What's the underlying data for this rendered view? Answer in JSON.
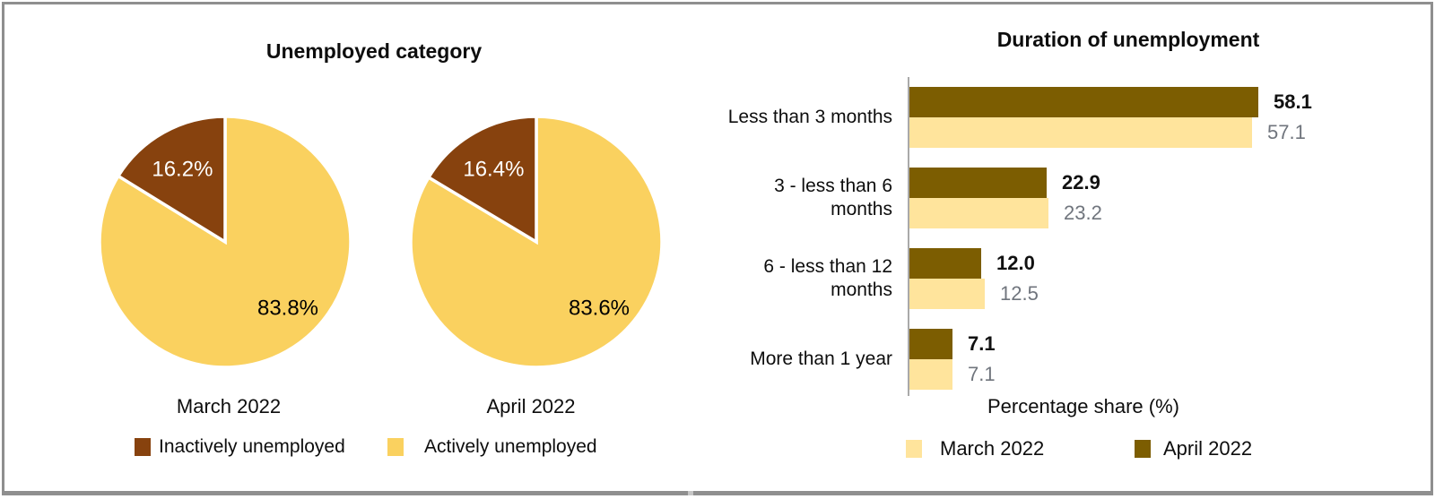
{
  "chart_data": [
    {
      "type": "pie",
      "title": "Unemployed category",
      "pies": [
        {
          "label": "March 2022",
          "slices": [
            {
              "name": "Inactively unemployed",
              "value": 16.2,
              "display": "16.2%"
            },
            {
              "name": "Actively unemployed",
              "value": 83.8,
              "display": "83.8%"
            }
          ]
        },
        {
          "label": "April 2022",
          "slices": [
            {
              "name": "Inactively unemployed",
              "value": 16.4,
              "display": "16.4%"
            },
            {
              "name": "Actively unemployed",
              "value": 83.6,
              "display": "83.6%"
            }
          ]
        }
      ],
      "colors": {
        "Inactively unemployed": "#87420E",
        "Actively unemployed": "#FAD15F"
      },
      "legend": [
        {
          "label": "Inactively unemployed",
          "color": "#87420E"
        },
        {
          "label": "Actively unemployed",
          "color": "#FAD15F"
        }
      ],
      "legend_position": "bottom",
      "grid": false
    },
    {
      "type": "bar",
      "orientation": "horizontal",
      "title": "Duration of unemployment",
      "categories": [
        "Less than 3 months",
        "3 - less than 6\nmonths",
        "6 - less than 12\nmonths",
        "More than 1 year"
      ],
      "series": [
        {
          "name": "April 2022",
          "color": "#7C5D01",
          "values": [
            58.1,
            22.9,
            12.0,
            7.1
          ],
          "labels": [
            "58.1",
            "22.9",
            "12.0",
            "7.1"
          ],
          "value_label_style": "bold"
        },
        {
          "name": "March 2022",
          "color": "#FFE49C",
          "values": [
            57.1,
            23.2,
            12.5,
            7.1
          ],
          "labels": [
            "57.1",
            "23.2",
            "12.5",
            "7.1"
          ],
          "value_label_style": "gray"
        }
      ],
      "xlabel": "Percentage share (%)",
      "xlim": [
        0,
        60
      ],
      "legend": [
        {
          "label": "March 2022",
          "color": "#FFE49C"
        },
        {
          "label": "April 2022",
          "color": "#7C5D01"
        }
      ],
      "legend_position": "bottom",
      "grid": false
    }
  ]
}
